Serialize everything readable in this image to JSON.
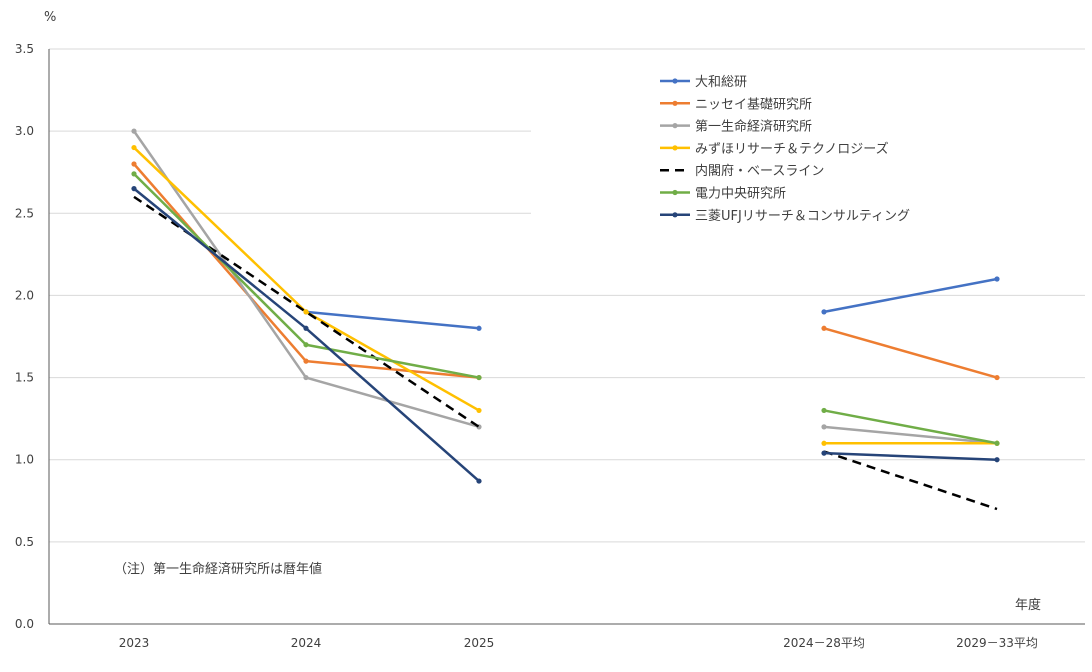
{
  "chart_data": {
    "type": "line",
    "title": "",
    "ylabel": "%",
    "xlabel": "年度",
    "ylim": [
      0,
      3.5
    ],
    "yticks": [
      "0.0",
      "0.5",
      "1.0",
      "1.5",
      "2.0",
      "2.5",
      "3.0",
      "3.5"
    ],
    "categories": [
      "2023",
      "2024",
      "2025",
      "2024－28平均",
      "2029－33平均"
    ],
    "grid": true,
    "legend_position": "top-right",
    "note": "（注）第一生命経済研究所は暦年値",
    "series": [
      {
        "name": "大和総研",
        "color": "#4472C4",
        "dashed": false,
        "values": [
          null,
          1.9,
          1.8,
          1.9,
          2.1
        ]
      },
      {
        "name": "ニッセイ基礎研究所",
        "color": "#ED7D31",
        "dashed": false,
        "values": [
          2.8,
          1.6,
          1.5,
          1.8,
          1.5
        ]
      },
      {
        "name": "第一生命経済研究所",
        "color": "#A5A5A5",
        "dashed": false,
        "values": [
          3.0,
          1.5,
          1.2,
          1.2,
          1.1
        ]
      },
      {
        "name": "みずほリサーチ＆テクノロジーズ",
        "color": "#FFC000",
        "dashed": false,
        "values": [
          2.9,
          1.9,
          1.3,
          1.1,
          1.1
        ]
      },
      {
        "name": "内閣府・ベースライン",
        "color": "#000000",
        "dashed": true,
        "values": [
          2.6,
          1.9,
          1.2,
          1.05,
          0.7
        ]
      },
      {
        "name": "電力中央研究所",
        "color": "#70AD47",
        "dashed": false,
        "values": [
          2.74,
          1.7,
          1.5,
          1.3,
          1.1
        ]
      },
      {
        "name": "三菱UFJリサーチ＆コンサルティング",
        "color": "#264478",
        "dashed": false,
        "values": [
          2.65,
          1.8,
          0.87,
          1.04,
          1.0
        ]
      }
    ]
  }
}
